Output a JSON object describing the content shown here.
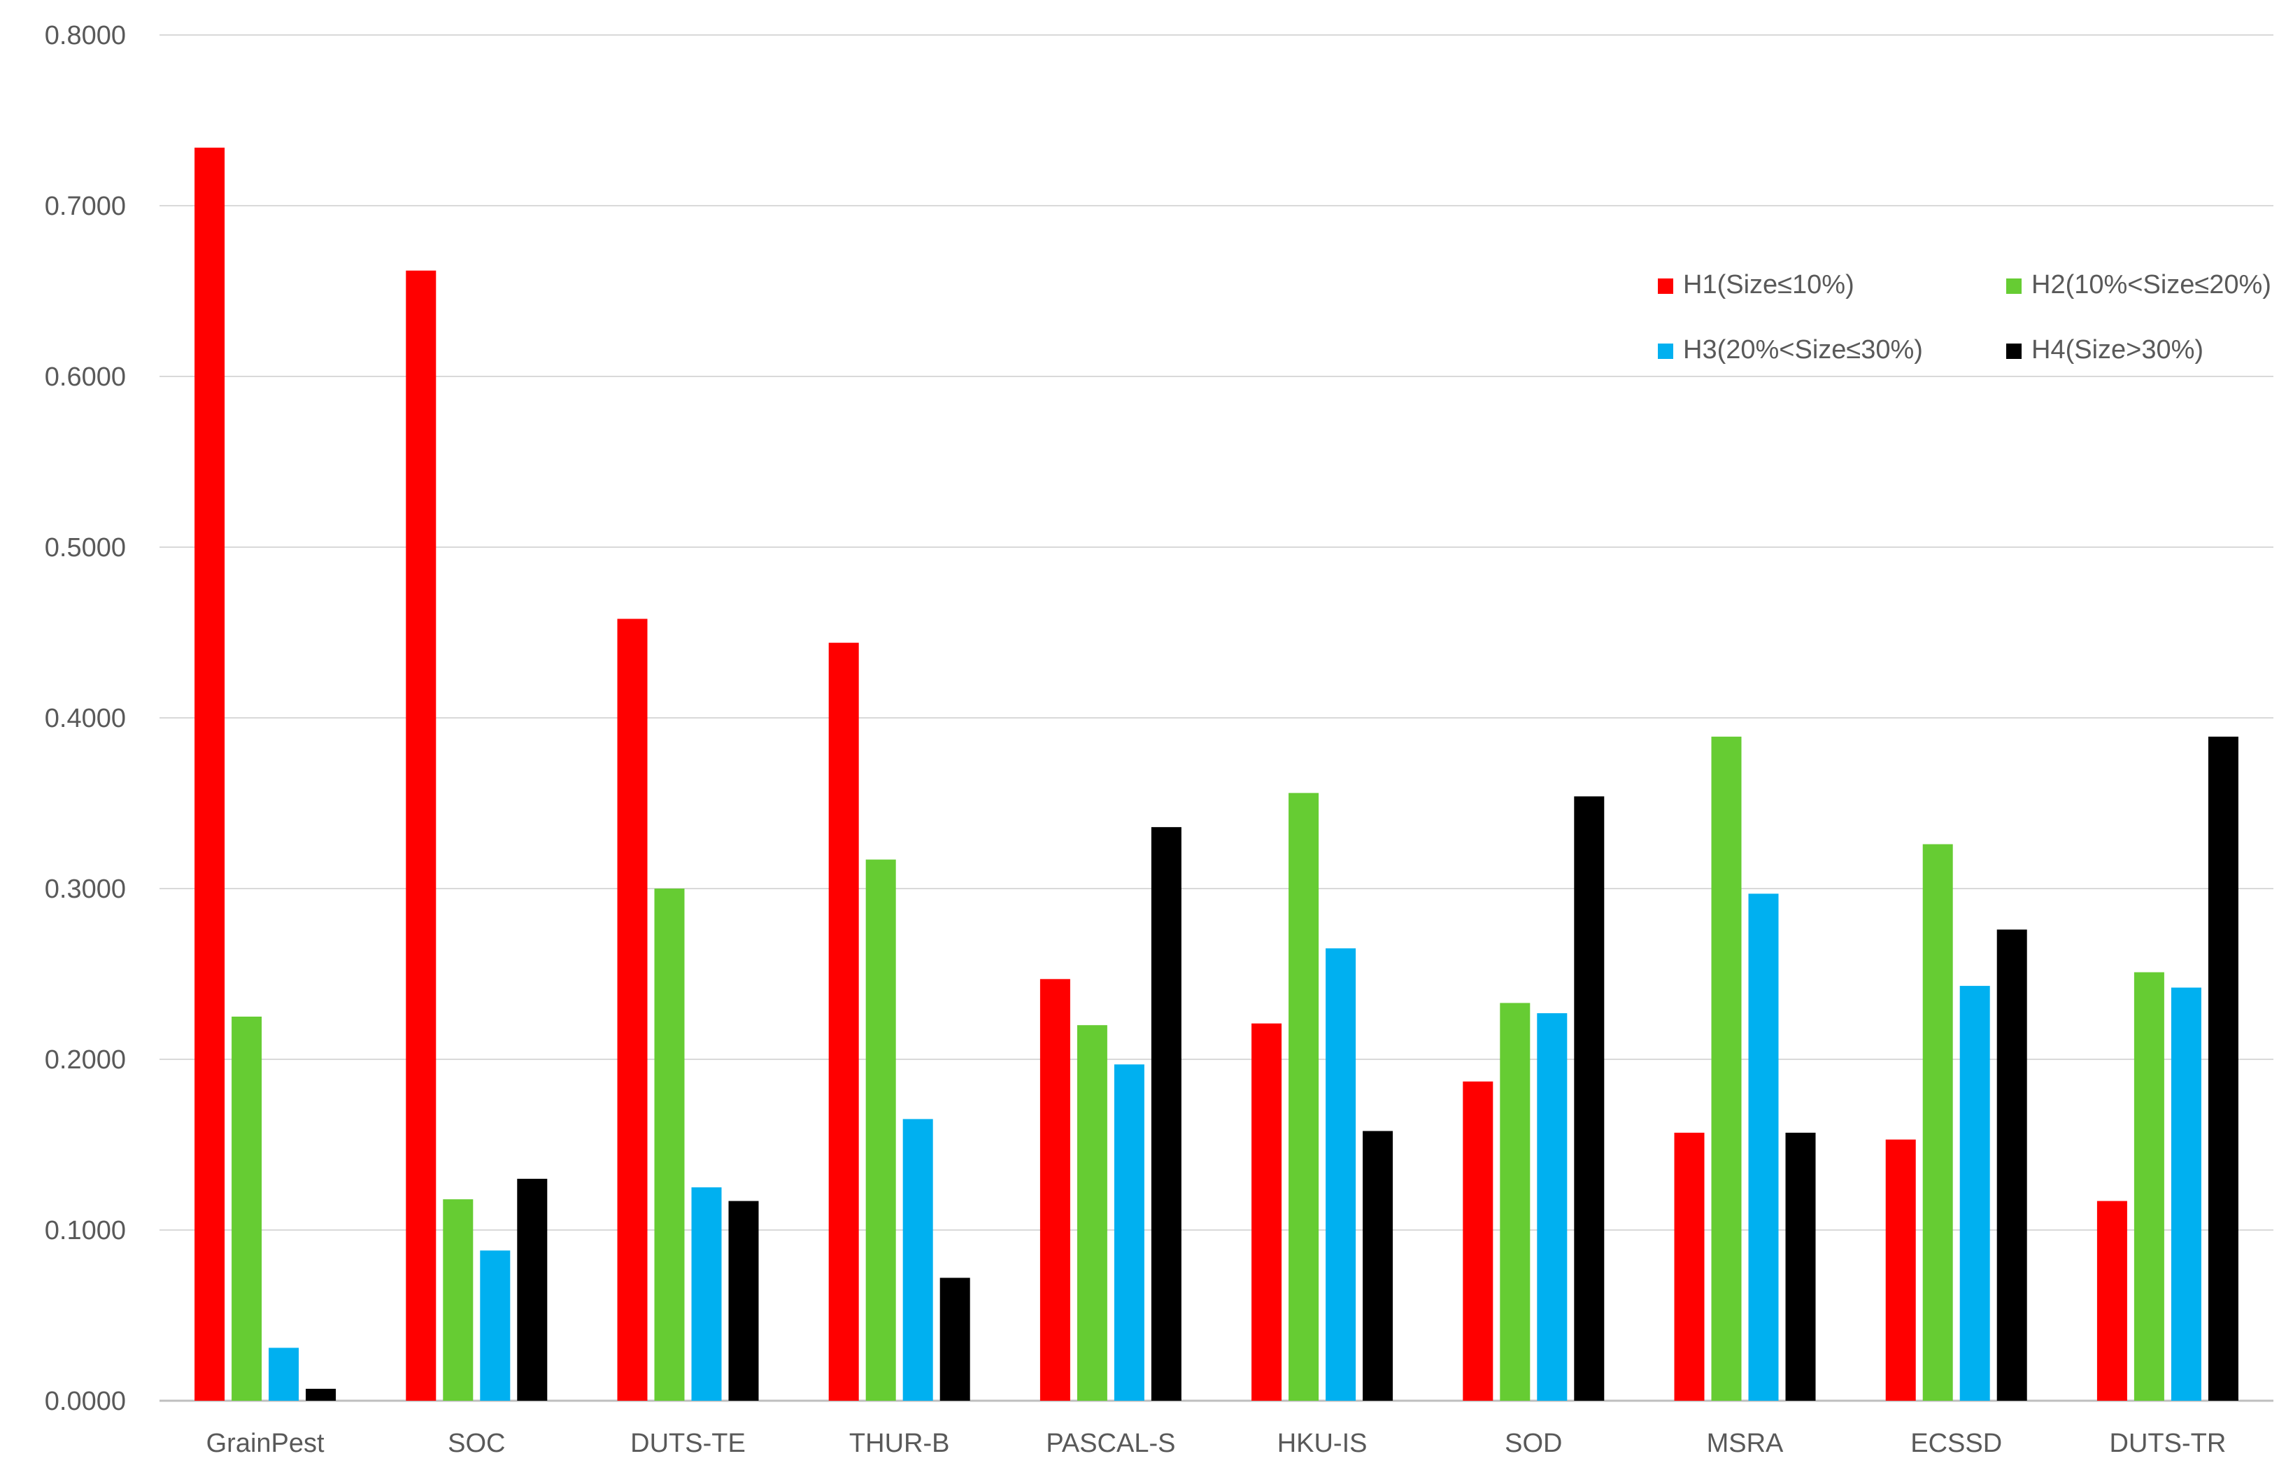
{
  "chart_data": {
    "type": "bar",
    "title": "",
    "xlabel": "",
    "ylabel": "",
    "ylim": [
      0,
      0.8
    ],
    "yticks": [
      "0.0000",
      "0.1000",
      "0.2000",
      "0.3000",
      "0.4000",
      "0.5000",
      "0.6000",
      "0.7000",
      "0.8000"
    ],
    "grid": true,
    "legend_position": "top-right",
    "categories": [
      "GrainPest",
      "SOC",
      "DUTS-TE",
      "THUR-B",
      "PASCAL-S",
      "HKU-IS",
      "SOD",
      "MSRA",
      "ECSSD",
      "DUTS-TR"
    ],
    "series": [
      {
        "name": "H1(Size≤10%)",
        "color": "#ff0000",
        "values": [
          0.734,
          0.662,
          0.458,
          0.444,
          0.247,
          0.221,
          0.187,
          0.157,
          0.153,
          0.117
        ]
      },
      {
        "name": "H2(10%<Size≤20%)",
        "color": "#66cc33",
        "values": [
          0.225,
          0.118,
          0.3,
          0.317,
          0.22,
          0.356,
          0.233,
          0.389,
          0.326,
          0.251
        ]
      },
      {
        "name": "H3(20%<Size≤30%)",
        "color": "#00b0f0",
        "values": [
          0.031,
          0.088,
          0.125,
          0.165,
          0.197,
          0.265,
          0.227,
          0.297,
          0.243,
          0.242
        ]
      },
      {
        "name": "H4(Size>30%)",
        "color": "#000000",
        "values": [
          0.007,
          0.13,
          0.117,
          0.072,
          0.336,
          0.158,
          0.354,
          0.157,
          0.276,
          0.389
        ]
      }
    ]
  }
}
